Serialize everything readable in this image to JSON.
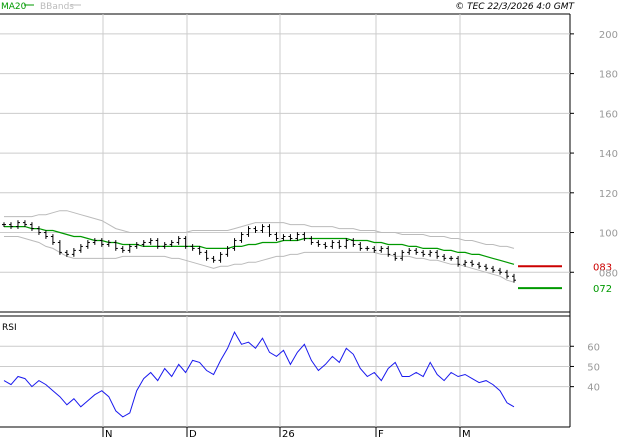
{
  "header": {
    "legend_ma": "MA20",
    "legend_bbands": "BBands",
    "copyright": "© TEC 22/3/2026 4:0 GMT"
  },
  "colors": {
    "price_bar": "#000000",
    "ma": "#009900",
    "bbands": "#bbbbbb",
    "rsi": "#1a1aee",
    "level_high": "#cc0000",
    "level_low": "#009900",
    "grid": "#cccccc",
    "axis_text": "#999999"
  },
  "chart_data": [
    {
      "type": "line",
      "name": "price-panel",
      "title": "",
      "ylim": [
        60,
        210
      ],
      "y_ticks": [
        80,
        100,
        120,
        140,
        160,
        180,
        200
      ],
      "y_tick_labels": [
        "080",
        "100",
        "120",
        "140",
        "160",
        "180",
        "200"
      ],
      "grid": true,
      "levels": [
        {
          "label": "083",
          "value": 83,
          "color": "#cc0000"
        },
        {
          "label": "072",
          "value": 72,
          "color": "#009900"
        }
      ],
      "x": [
        "2025-10-01",
        "2025-10-03",
        "2025-10-06",
        "2025-10-08",
        "2025-10-10",
        "2025-10-13",
        "2025-10-15",
        "2025-10-17",
        "2025-10-20",
        "2025-10-22",
        "2025-10-24",
        "2025-10-27",
        "2025-10-29",
        "2025-10-31",
        "2025-11-03",
        "2025-11-05",
        "2025-11-07",
        "2025-11-10",
        "2025-11-12",
        "2025-11-14",
        "2025-11-17",
        "2025-11-19",
        "2025-11-21",
        "2025-11-24",
        "2025-11-26",
        "2025-11-28",
        "2025-12-01",
        "2025-12-03",
        "2025-12-05",
        "2025-12-08",
        "2025-12-10",
        "2025-12-12",
        "2025-12-15",
        "2025-12-17",
        "2025-12-19",
        "2025-12-22",
        "2025-12-24",
        "2025-12-26",
        "2025-12-29",
        "2025-12-31",
        "2026-01-02",
        "2026-01-05",
        "2026-01-07",
        "2026-01-09",
        "2026-01-12",
        "2026-01-14",
        "2026-01-16",
        "2026-01-19",
        "2026-01-21",
        "2026-01-23",
        "2026-01-26",
        "2026-01-28",
        "2026-01-30",
        "2026-02-02",
        "2026-02-04",
        "2026-02-06",
        "2026-02-09",
        "2026-02-11",
        "2026-02-13",
        "2026-02-16",
        "2026-02-18",
        "2026-02-20",
        "2026-02-23",
        "2026-02-25",
        "2026-02-27",
        "2026-03-02",
        "2026-03-04",
        "2026-03-06",
        "2026-03-09",
        "2026-03-11",
        "2026-03-13",
        "2026-03-16",
        "2026-03-18",
        "2026-03-20"
      ],
      "series": [
        {
          "role": "close",
          "values": [
            104,
            103,
            105,
            104,
            102,
            100,
            98,
            95,
            90,
            89,
            91,
            93,
            95,
            96,
            94,
            95,
            92,
            91,
            93,
            94,
            95,
            96,
            93,
            94,
            95,
            97,
            93,
            92,
            90,
            87,
            86,
            89,
            92,
            96,
            99,
            102,
            101,
            103,
            99,
            97,
            98,
            97,
            99,
            97,
            95,
            94,
            93,
            95,
            93,
            96,
            94,
            92,
            92,
            91,
            92,
            89,
            87,
            90,
            91,
            90,
            89,
            90,
            88,
            87,
            87,
            84,
            85,
            84,
            83,
            82,
            81,
            80,
            78,
            76
          ]
        },
        {
          "role": "ma",
          "name": "MA20",
          "values": [
            103,
            103,
            103,
            103,
            102,
            102,
            101,
            101,
            100,
            99,
            98,
            98,
            97,
            96,
            96,
            95,
            95,
            94,
            94,
            94,
            93,
            93,
            93,
            93,
            93,
            93,
            93,
            93,
            93,
            92,
            92,
            92,
            92,
            93,
            93,
            94,
            94,
            95,
            95,
            95,
            96,
            96,
            96,
            97,
            97,
            97,
            97,
            97,
            97,
            97,
            96,
            96,
            96,
            95,
            95,
            94,
            94,
            94,
            93,
            93,
            92,
            92,
            92,
            91,
            91,
            90,
            90,
            89,
            89,
            88,
            87,
            86,
            85,
            84
          ]
        },
        {
          "role": "bb_upper",
          "name": "BBands",
          "values": [
            108,
            108,
            108,
            108,
            108,
            109,
            109,
            110,
            111,
            111,
            110,
            109,
            108,
            107,
            106,
            104,
            102,
            101,
            100,
            100,
            100,
            100,
            100,
            100,
            100,
            100,
            100,
            101,
            101,
            101,
            101,
            101,
            101,
            102,
            103,
            104,
            105,
            105,
            105,
            105,
            105,
            104,
            104,
            104,
            103,
            103,
            103,
            103,
            102,
            102,
            102,
            101,
            101,
            101,
            100,
            100,
            100,
            99,
            99,
            99,
            99,
            98,
            98,
            98,
            97,
            97,
            96,
            96,
            95,
            94,
            94,
            93,
            93,
            92
          ]
        },
        {
          "role": "bb_lower",
          "name": "BBands",
          "values": [
            98,
            98,
            98,
            97,
            96,
            95,
            93,
            92,
            90,
            88,
            87,
            87,
            87,
            87,
            87,
            87,
            87,
            88,
            88,
            88,
            88,
            88,
            88,
            88,
            87,
            87,
            86,
            85,
            84,
            83,
            82,
            83,
            83,
            84,
            84,
            85,
            85,
            86,
            87,
            88,
            88,
            89,
            89,
            90,
            90,
            90,
            90,
            90,
            90,
            90,
            90,
            90,
            90,
            90,
            89,
            89,
            88,
            88,
            88,
            87,
            87,
            86,
            86,
            85,
            84,
            84,
            83,
            82,
            81,
            80,
            79,
            78,
            76,
            75
          ]
        }
      ]
    },
    {
      "type": "line",
      "name": "rsi-panel",
      "title": "RSI",
      "ylim": [
        20,
        75
      ],
      "y_ticks": [
        40,
        50,
        60
      ],
      "y_tick_labels": [
        "40",
        "50",
        "60"
      ],
      "grid": true,
      "x_tick_labels": [
        "N",
        "D",
        "26",
        "F",
        "M"
      ],
      "x_tick_dates": [
        "2025-11-03",
        "2025-12-01",
        "2026-01-01",
        "2026-02-02",
        "2026-03-02"
      ],
      "series": [
        {
          "role": "rsi",
          "name": "RSI",
          "values": [
            43,
            41,
            45,
            44,
            40,
            43,
            41,
            38,
            35,
            31,
            34,
            30,
            33,
            36,
            38,
            35,
            28,
            25,
            27,
            38,
            44,
            47,
            43,
            49,
            45,
            51,
            47,
            53,
            52,
            48,
            46,
            53,
            59,
            67,
            61,
            62,
            59,
            64,
            57,
            55,
            58,
            51,
            57,
            61,
            53,
            48,
            51,
            55,
            52,
            59,
            56,
            49,
            45,
            47,
            43,
            49,
            52,
            45,
            45,
            47,
            45,
            52,
            46,
            43,
            47,
            45,
            46,
            44,
            42,
            43,
            41,
            38,
            32,
            30
          ]
        }
      ]
    }
  ]
}
